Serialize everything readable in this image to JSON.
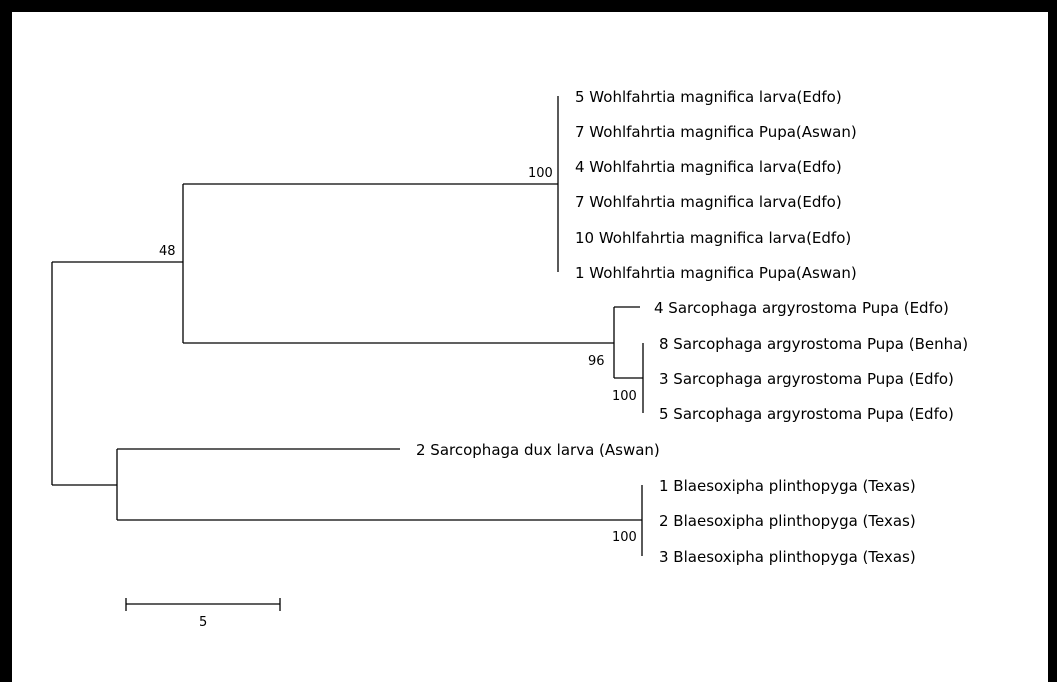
{
  "tree": {
    "taxa": [
      "5 Wohlfahrtia magnifica larva(Edfo)",
      "7 Wohlfahrtia magnifica Pupa(Aswan)",
      "4 Wohlfahrtia magnifica larva(Edfo)",
      "7 Wohlfahrtia magnifica larva(Edfo)",
      "10 Wohlfahrtia magnifica larva(Edfo)",
      "1 Wohlfahrtia magnifica Pupa(Aswan)",
      "4 Sarcophaga argyrostoma Pupa (Edfo)",
      "8 Sarcophaga argyrostoma Pupa (Benha)",
      "3 Sarcophaga argyrostoma Pupa (Edfo)",
      "5 Sarcophaga argyrostoma Pupa (Edfo)",
      "2 Sarcophaga dux larva (Aswan)",
      "1 Blaesoxipha plinthopyga (Texas)",
      "2 Blaesoxipha plinthopyga (Texas)",
      "3 Blaesoxipha plinthopyga (Texas)"
    ],
    "support_values": {
      "wohlfahrtia_clade": "100",
      "wohlfahrtia_sarcophaga_argyrostoma": "48",
      "sarcophaga_argyrostoma_clade": "96",
      "sarcophaga_argyrostoma_subclade": "100",
      "blaesoxipha_clade": "100"
    },
    "scale_bar": {
      "length": 5,
      "label": "5"
    }
  }
}
